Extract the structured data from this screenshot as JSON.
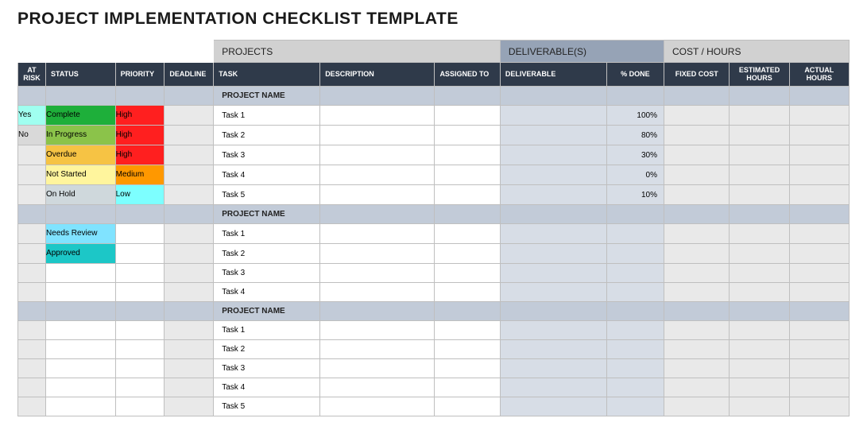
{
  "title": "PROJECT IMPLEMENTATION CHECKLIST TEMPLATE",
  "group_headers": {
    "deliverables_bg": "#96a3b6",
    "projects": "PROJECTS",
    "deliverables": "DELIVERABLE(S)",
    "cost": "COST / HOURS"
  },
  "columns": {
    "at_risk": "AT RISK",
    "status": "STATUS",
    "priority": "PRIORITY",
    "deadline": "DEADLINE",
    "task": "TASK",
    "description": "DESCRIPTION",
    "assigned_to": "ASSIGNED TO",
    "deliverable": "DELIVERABLE",
    "pct_done": "% DONE",
    "fixed_cost": "FIXED COST",
    "est_hours": "ESTIMATED HOURS",
    "actual_hours": "ACTUAL HOURS"
  },
  "status_colors": {
    "Complete": "#1eaf3a",
    "In Progress": "#8bc34a",
    "Overdue": "#f6c344",
    "Not Started": "#fff59d",
    "On Hold": "#cfd8dc",
    "Needs Review": "#80e3ff",
    "Approved": "#1cc7c7"
  },
  "priority_colors": {
    "High": "#ff1f1f",
    "Medium": "#ff9800",
    "Low": "#7dffff"
  },
  "atrisk_colors": {
    "Yes": "#a0fff0",
    "No": "#d9d9d9"
  },
  "sections": [
    {
      "name": "PROJECT NAME",
      "rows": [
        {
          "at_risk": "Yes",
          "status": "Complete",
          "priority": "High",
          "deadline": "",
          "task": "Task 1",
          "description": "",
          "assigned_to": "",
          "deliverable": "",
          "pct_done": "100%",
          "fixed_cost": "",
          "est_hours": "",
          "actual_hours": ""
        },
        {
          "at_risk": "No",
          "status": "In Progress",
          "priority": "High",
          "deadline": "",
          "task": "Task 2",
          "description": "",
          "assigned_to": "",
          "deliverable": "",
          "pct_done": "80%",
          "fixed_cost": "",
          "est_hours": "",
          "actual_hours": ""
        },
        {
          "at_risk": "",
          "status": "Overdue",
          "priority": "High",
          "deadline": "",
          "task": "Task 3",
          "description": "",
          "assigned_to": "",
          "deliverable": "",
          "pct_done": "30%",
          "fixed_cost": "",
          "est_hours": "",
          "actual_hours": ""
        },
        {
          "at_risk": "",
          "status": "Not Started",
          "priority": "Medium",
          "deadline": "",
          "task": "Task 4",
          "description": "",
          "assigned_to": "",
          "deliverable": "",
          "pct_done": "0%",
          "fixed_cost": "",
          "est_hours": "",
          "actual_hours": ""
        },
        {
          "at_risk": "",
          "status": "On Hold",
          "priority": "Low",
          "deadline": "",
          "task": "Task 5",
          "description": "",
          "assigned_to": "",
          "deliverable": "",
          "pct_done": "10%",
          "fixed_cost": "",
          "est_hours": "",
          "actual_hours": ""
        }
      ]
    },
    {
      "name": "PROJECT NAME",
      "rows": [
        {
          "at_risk": "",
          "status": "Needs Review",
          "priority": "",
          "deadline": "",
          "task": "Task 1",
          "description": "",
          "assigned_to": "",
          "deliverable": "",
          "pct_done": "",
          "fixed_cost": "",
          "est_hours": "",
          "actual_hours": ""
        },
        {
          "at_risk": "",
          "status": "Approved",
          "priority": "",
          "deadline": "",
          "task": "Task 2",
          "description": "",
          "assigned_to": "",
          "deliverable": "",
          "pct_done": "",
          "fixed_cost": "",
          "est_hours": "",
          "actual_hours": ""
        },
        {
          "at_risk": "",
          "status": "",
          "priority": "",
          "deadline": "",
          "task": "Task 3",
          "description": "",
          "assigned_to": "",
          "deliverable": "",
          "pct_done": "",
          "fixed_cost": "",
          "est_hours": "",
          "actual_hours": ""
        },
        {
          "at_risk": "",
          "status": "",
          "priority": "",
          "deadline": "",
          "task": "Task 4",
          "description": "",
          "assigned_to": "",
          "deliverable": "",
          "pct_done": "",
          "fixed_cost": "",
          "est_hours": "",
          "actual_hours": ""
        }
      ]
    },
    {
      "name": "PROJECT NAME",
      "rows": [
        {
          "at_risk": "",
          "status": "",
          "priority": "",
          "deadline": "",
          "task": "Task 1",
          "description": "",
          "assigned_to": "",
          "deliverable": "",
          "pct_done": "",
          "fixed_cost": "",
          "est_hours": "",
          "actual_hours": ""
        },
        {
          "at_risk": "",
          "status": "",
          "priority": "",
          "deadline": "",
          "task": "Task 2",
          "description": "",
          "assigned_to": "",
          "deliverable": "",
          "pct_done": "",
          "fixed_cost": "",
          "est_hours": "",
          "actual_hours": ""
        },
        {
          "at_risk": "",
          "status": "",
          "priority": "",
          "deadline": "",
          "task": "Task 3",
          "description": "",
          "assigned_to": "",
          "deliverable": "",
          "pct_done": "",
          "fixed_cost": "",
          "est_hours": "",
          "actual_hours": ""
        },
        {
          "at_risk": "",
          "status": "",
          "priority": "",
          "deadline": "",
          "task": "Task 4",
          "description": "",
          "assigned_to": "",
          "deliverable": "",
          "pct_done": "",
          "fixed_cost": "",
          "est_hours": "",
          "actual_hours": ""
        },
        {
          "at_risk": "",
          "status": "",
          "priority": "",
          "deadline": "",
          "task": "Task 5",
          "description": "",
          "assigned_to": "",
          "deliverable": "",
          "pct_done": "",
          "fixed_cost": "",
          "est_hours": "",
          "actual_hours": ""
        }
      ]
    }
  ]
}
